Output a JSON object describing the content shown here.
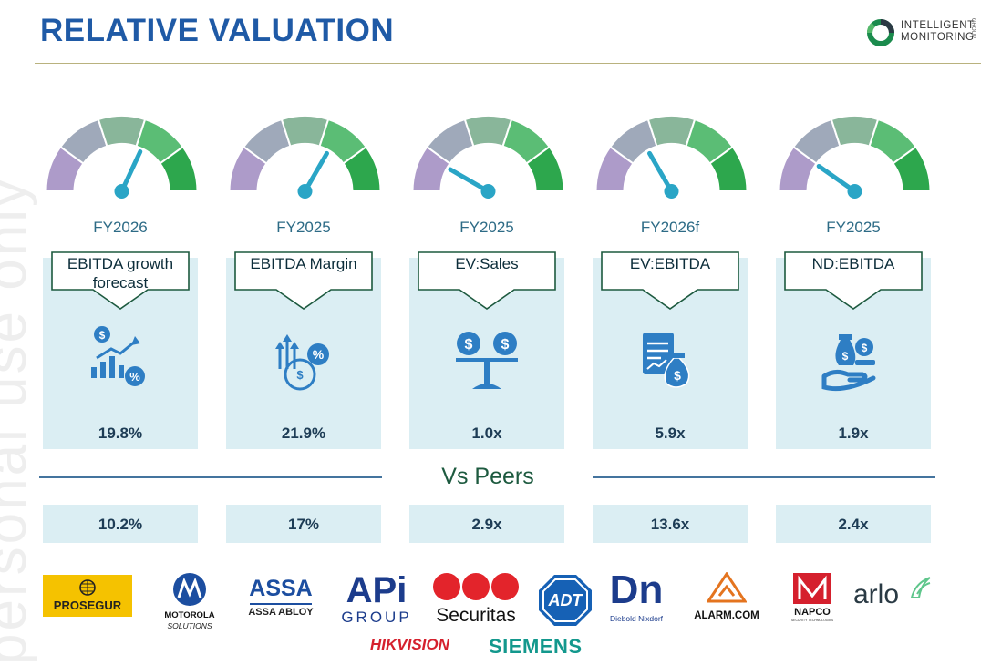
{
  "header": {
    "title": "RELATIVE VALUATION",
    "logo_line1": "INTELLIGENT",
    "logo_line2": "MONITORING",
    "logo_suffix": "GROUP"
  },
  "watermark": "personal use only",
  "metrics": [
    {
      "period": "FY2026",
      "label_line1": "EBITDA growth",
      "label_line2": "forecast",
      "icon": "growth-chart-icon",
      "value": "19.8%",
      "peer_value": "10.2%"
    },
    {
      "period": "FY2025",
      "label_line1": "EBITDA Margin",
      "label_line2": "",
      "icon": "margin-percent-icon",
      "value": "21.9%",
      "peer_value": "17%"
    },
    {
      "period": "FY2025",
      "label_line1": "EV:Sales",
      "label_line2": "",
      "icon": "balance-scale-icon",
      "value": "1.0x",
      "peer_value": "2.9x"
    },
    {
      "period": "FY2026f",
      "label_line1": "EV:EBITDA",
      "label_line2": "",
      "icon": "financial-report-icon",
      "value": "5.9x",
      "peer_value": "13.6x"
    },
    {
      "period": "FY2025",
      "label_line1": "ND:EBITDA",
      "label_line2": "",
      "icon": "hand-money-bag-icon",
      "value": "1.9x",
      "peer_value": "2.4x"
    }
  ],
  "gauge_needle_angles_deg": [
    65,
    60,
    150,
    120,
    145
  ],
  "vs_peers_label": "Vs Peers",
  "peers": {
    "prosegur": "PROSEGUR",
    "motorola_1": "MOTOROLA",
    "motorola_2": "SOLUTIONS",
    "assa_1": "ASSA",
    "assa_2": "ASSA ABLOY",
    "api_1": "APi",
    "api_2": "GROUP",
    "securitas": "Securitas",
    "adt": "ADT",
    "diebold_mark": "Dn",
    "diebold": "Diebold Nixdorf",
    "alarm": "ALARM.COM",
    "napco": "NAPCO",
    "napco_sub": "SECURITY TECHNOLOGIES",
    "arlo": "arlo",
    "hikvision": "HIKVISION",
    "siemens": "SIEMENS"
  },
  "colors": {
    "title": "#1f5aa6",
    "card": "#dbeef3",
    "needle": "#2aa5c6",
    "gauge_left": "#a997c4",
    "gauge_right": "#26a546"
  }
}
